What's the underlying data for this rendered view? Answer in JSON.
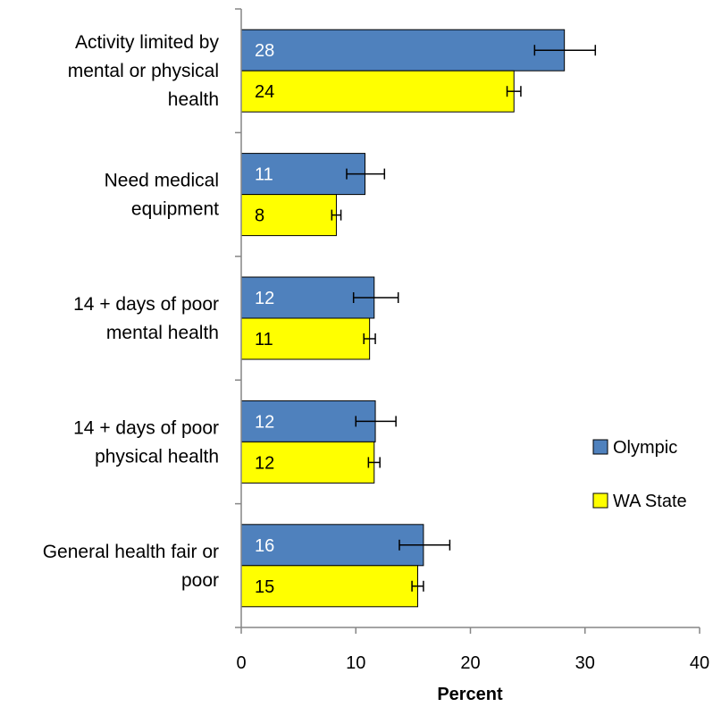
{
  "chart_data": {
    "type": "bar",
    "orientation": "horizontal",
    "title": "",
    "xlabel": "Percent",
    "ylabel": "",
    "xlim": [
      0,
      40
    ],
    "x_ticks": [
      0,
      10,
      20,
      30,
      40
    ],
    "grid": false,
    "legend_position": "right",
    "categories": [
      "Activity limited by mental or physical health",
      "Need medical equipment",
      "14 + days of poor mental health",
      "14 + days of poor physical health",
      "General health fair or poor"
    ],
    "category_display_lines": [
      [
        "Activity limited by",
        "mental or physical",
        "health"
      ],
      [
        "Need medical",
        "equipment"
      ],
      [
        "14 + days of poor",
        "mental health"
      ],
      [
        "14 + days of poor",
        "physical health"
      ],
      [
        "General health fair or",
        "poor"
      ]
    ],
    "series": [
      {
        "name": "Olympic",
        "color": "#4F81BD",
        "label_color": "#ffffff",
        "values": [
          28.2,
          10.8,
          11.6,
          11.7,
          15.9
        ],
        "labels": [
          "28",
          "11",
          "12",
          "12",
          "16"
        ],
        "ci_low": [
          25.6,
          9.2,
          9.8,
          10.0,
          13.8
        ],
        "ci_high": [
          30.9,
          12.5,
          13.7,
          13.5,
          18.2
        ]
      },
      {
        "name": "WA State",
        "color": "#FFFF00",
        "label_color": "#000000",
        "values": [
          23.8,
          8.3,
          11.2,
          11.6,
          15.4
        ],
        "labels": [
          "24",
          "8",
          "11",
          "12",
          "15"
        ],
        "ci_low": [
          23.2,
          7.9,
          10.7,
          11.1,
          14.9
        ],
        "ci_high": [
          24.4,
          8.7,
          11.7,
          12.1,
          15.9
        ]
      }
    ]
  }
}
